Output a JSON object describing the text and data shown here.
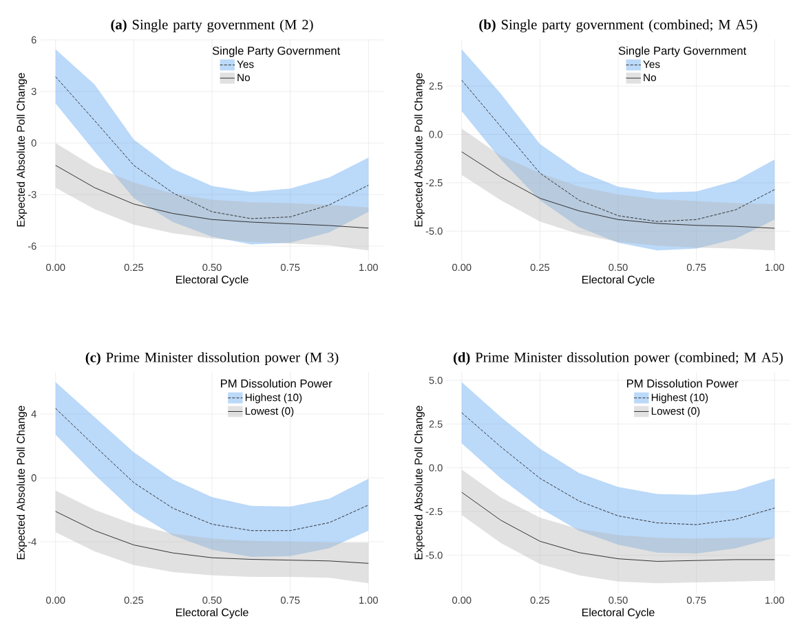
{
  "chart_data": [
    {
      "type": "line",
      "title": "**(a)** Single party government (M 2)",
      "xlabel": "Electoral Cycle",
      "ylabel": "Expected Absolute Poll Change",
      "legend_title": "Single Party Government",
      "legend": "top right",
      "grid": true,
      "x": [
        0,
        0.125,
        0.25,
        0.375,
        0.5,
        0.625,
        0.75,
        0.875,
        1
      ],
      "xlim": [
        -0.05,
        1.05
      ],
      "ylim": [
        -6.84,
        6.04
      ],
      "xticks": [
        {
          "value": 0,
          "label": "0.00"
        },
        {
          "value": 0.25,
          "label": "0.25"
        },
        {
          "value": 0.5,
          "label": "0.50"
        },
        {
          "value": 0.75,
          "label": "0.75"
        },
        {
          "value": 1,
          "label": "1.00"
        }
      ],
      "yticks": [
        -6,
        -3,
        0,
        3,
        6
      ],
      "colors": [
        "#56a0f0",
        "#b3b3b3"
      ],
      "series": [
        {
          "name": "Yes",
          "color": "#262626",
          "line_style": "dashed",
          "values": [
            3.85,
            1.3,
            -1.3,
            -2.9,
            -4.0,
            -4.4,
            -4.3,
            -3.6,
            -2.45
          ],
          "upper": [
            5.45,
            3.4,
            0.2,
            -1.5,
            -2.5,
            -2.85,
            -2.65,
            -2.0,
            -0.85
          ],
          "lower": [
            2.3,
            -0.5,
            -3.2,
            -4.6,
            -5.45,
            -5.9,
            -5.8,
            -5.2,
            -4.0
          ]
        },
        {
          "name": "No",
          "color": "#262626",
          "line_style": "solid",
          "values": [
            -1.3,
            -2.6,
            -3.55,
            -4.1,
            -4.45,
            -4.6,
            -4.7,
            -4.8,
            -4.95
          ],
          "upper": [
            0,
            -1.4,
            -2.3,
            -2.95,
            -3.3,
            -3.45,
            -3.5,
            -3.6,
            -3.75
          ],
          "lower": [
            -2.6,
            -3.85,
            -4.75,
            -5.25,
            -5.55,
            -5.75,
            -5.85,
            -5.95,
            -6.25
          ]
        }
      ]
    },
    {
      "type": "line",
      "title": "**(b)** Single party government (combined; M A5)",
      "xlabel": "Electoral Cycle",
      "ylabel": "Expected Absolute Poll Change",
      "legend_title": "Single Party Government",
      "legend": "top right",
      "grid": true,
      "x": [
        0,
        0.125,
        0.25,
        0.375,
        0.5,
        0.625,
        0.75,
        0.875,
        1
      ],
      "xlim": [
        -0.05,
        1.05
      ],
      "ylim": [
        -6.52,
        4.92
      ],
      "xticks": [
        {
          "value": 0,
          "label": "0.00"
        },
        {
          "value": 0.25,
          "label": "0.25"
        },
        {
          "value": 0.5,
          "label": "0.50"
        },
        {
          "value": 0.75,
          "label": "0.75"
        },
        {
          "value": 1,
          "label": "1.00"
        }
      ],
      "yticks": [
        {
          "value": -5,
          "label": "-5.0"
        },
        {
          "value": -2.5,
          "label": "-2.5"
        },
        {
          "value": 0,
          "label": "0.0"
        },
        {
          "value": 2.5,
          "label": "2.5"
        }
      ],
      "colors": [
        "#56a0f0",
        "#b3b3b3"
      ],
      "series": [
        {
          "name": "Yes",
          "color": "#262626",
          "line_style": "dashed",
          "values": [
            2.8,
            0.4,
            -2.0,
            -3.4,
            -4.2,
            -4.5,
            -4.4,
            -3.9,
            -2.85
          ],
          "upper": [
            4.4,
            2.1,
            -0.5,
            -1.9,
            -2.7,
            -3.0,
            -2.95,
            -2.4,
            -1.3
          ],
          "lower": [
            1.2,
            -1.3,
            -3.4,
            -4.8,
            -5.6,
            -6.0,
            -5.9,
            -5.4,
            -4.4
          ]
        },
        {
          "name": "No",
          "color": "#262626",
          "line_style": "solid",
          "values": [
            -0.9,
            -2.2,
            -3.3,
            -3.95,
            -4.4,
            -4.6,
            -4.7,
            -4.75,
            -4.85
          ],
          "upper": [
            0.3,
            -1.1,
            -2.0,
            -2.7,
            -3.1,
            -3.35,
            -3.45,
            -3.55,
            -3.6
          ],
          "lower": [
            -2.1,
            -3.4,
            -4.5,
            -5.15,
            -5.55,
            -5.75,
            -5.85,
            -5.9,
            -6.0
          ]
        }
      ]
    },
    {
      "type": "line",
      "title": "**(c)** Prime Minister dissolution power (M 3)",
      "xlabel": "Electoral Cycle",
      "ylabel": "Expected Absolute Poll Change",
      "legend_title": "PM Dissolution Power",
      "legend": "top right",
      "grid": true,
      "x": [
        0,
        0.125,
        0.25,
        0.375,
        0.5,
        0.625,
        0.75,
        0.875,
        1
      ],
      "xlim": [
        -0.05,
        1.05
      ],
      "ylim": [
        -7.23,
        6.63
      ],
      "xticks": [
        {
          "value": 0,
          "label": "0.00"
        },
        {
          "value": 0.25,
          "label": "0.25"
        },
        {
          "value": 0.5,
          "label": "0.50"
        },
        {
          "value": 0.75,
          "label": "0.75"
        },
        {
          "value": 1,
          "label": "1.00"
        }
      ],
      "yticks": [
        -4,
        0,
        4
      ],
      "colors": [
        "#56a0f0",
        "#b3b3b3"
      ],
      "series": [
        {
          "name": "Highest (10)",
          "color": "#262626",
          "line_style": "dashed",
          "values": [
            4.35,
            2.0,
            -0.3,
            -1.9,
            -2.9,
            -3.3,
            -3.3,
            -2.8,
            -1.7
          ],
          "upper": [
            6.0,
            3.8,
            1.6,
            -0.1,
            -1.2,
            -1.75,
            -1.8,
            -1.3,
            -0.05
          ],
          "lower": [
            2.7,
            0.2,
            -2.1,
            -3.6,
            -4.5,
            -4.95,
            -4.9,
            -4.4,
            -3.3
          ]
        },
        {
          "name": "Lowest (0)",
          "color": "#262626",
          "line_style": "solid",
          "values": [
            -2.1,
            -3.3,
            -4.2,
            -4.7,
            -5.0,
            -5.1,
            -5.15,
            -5.2,
            -5.35
          ],
          "upper": [
            -0.8,
            -2.0,
            -2.9,
            -3.5,
            -3.8,
            -3.95,
            -4.0,
            -4.05,
            -4.05
          ],
          "lower": [
            -3.4,
            -4.6,
            -5.45,
            -5.9,
            -6.1,
            -6.2,
            -6.2,
            -6.25,
            -6.6
          ]
        }
      ]
    },
    {
      "type": "line",
      "title": "**(d)** Prime Minister dissolution power (combined; M A5)",
      "xlabel": "Electoral Cycle",
      "ylabel": "Expected Absolute Poll Change",
      "legend_title": "PM Dissolution Power",
      "legend": "top right",
      "grid": true,
      "x": [
        0,
        0.125,
        0.25,
        0.375,
        0.5,
        0.625,
        0.75,
        0.875,
        1
      ],
      "xlim": [
        -0.05,
        1.05
      ],
      "ylim": [
        -7.18,
        5.48
      ],
      "xticks": [
        {
          "value": 0,
          "label": "0.00"
        },
        {
          "value": 0.25,
          "label": "0.25"
        },
        {
          "value": 0.5,
          "label": "0.50"
        },
        {
          "value": 0.75,
          "label": "0.75"
        },
        {
          "value": 1,
          "label": "1.00"
        }
      ],
      "yticks": [
        {
          "value": -5,
          "label": "-5.0"
        },
        {
          "value": -2.5,
          "label": "-2.5"
        },
        {
          "value": 0,
          "label": "0.0"
        },
        {
          "value": 2.5,
          "label": "2.5"
        },
        {
          "value": 5,
          "label": "5.0"
        }
      ],
      "colors": [
        "#56a0f0",
        "#b3b3b3"
      ],
      "series": [
        {
          "name": "Highest (10)",
          "color": "#262626",
          "line_style": "dashed",
          "values": [
            3.15,
            1.2,
            -0.6,
            -1.9,
            -2.75,
            -3.15,
            -3.25,
            -2.95,
            -2.3
          ],
          "upper": [
            4.9,
            2.9,
            1.1,
            -0.3,
            -1.1,
            -1.5,
            -1.55,
            -1.3,
            -0.6
          ],
          "lower": [
            1.4,
            -0.6,
            -2.3,
            -3.6,
            -4.4,
            -4.85,
            -4.9,
            -4.6,
            -4.0
          ]
        },
        {
          "name": "Lowest (0)",
          "color": "#262626",
          "line_style": "solid",
          "values": [
            -1.4,
            -3.0,
            -4.2,
            -4.85,
            -5.2,
            -5.35,
            -5.3,
            -5.25,
            -5.25
          ],
          "upper": [
            -0.1,
            -1.7,
            -2.85,
            -3.5,
            -3.85,
            -4.0,
            -4.05,
            -4.0,
            -4.0
          ],
          "lower": [
            -2.7,
            -4.3,
            -5.5,
            -6.15,
            -6.5,
            -6.6,
            -6.55,
            -6.5,
            -6.45
          ]
        }
      ]
    }
  ]
}
